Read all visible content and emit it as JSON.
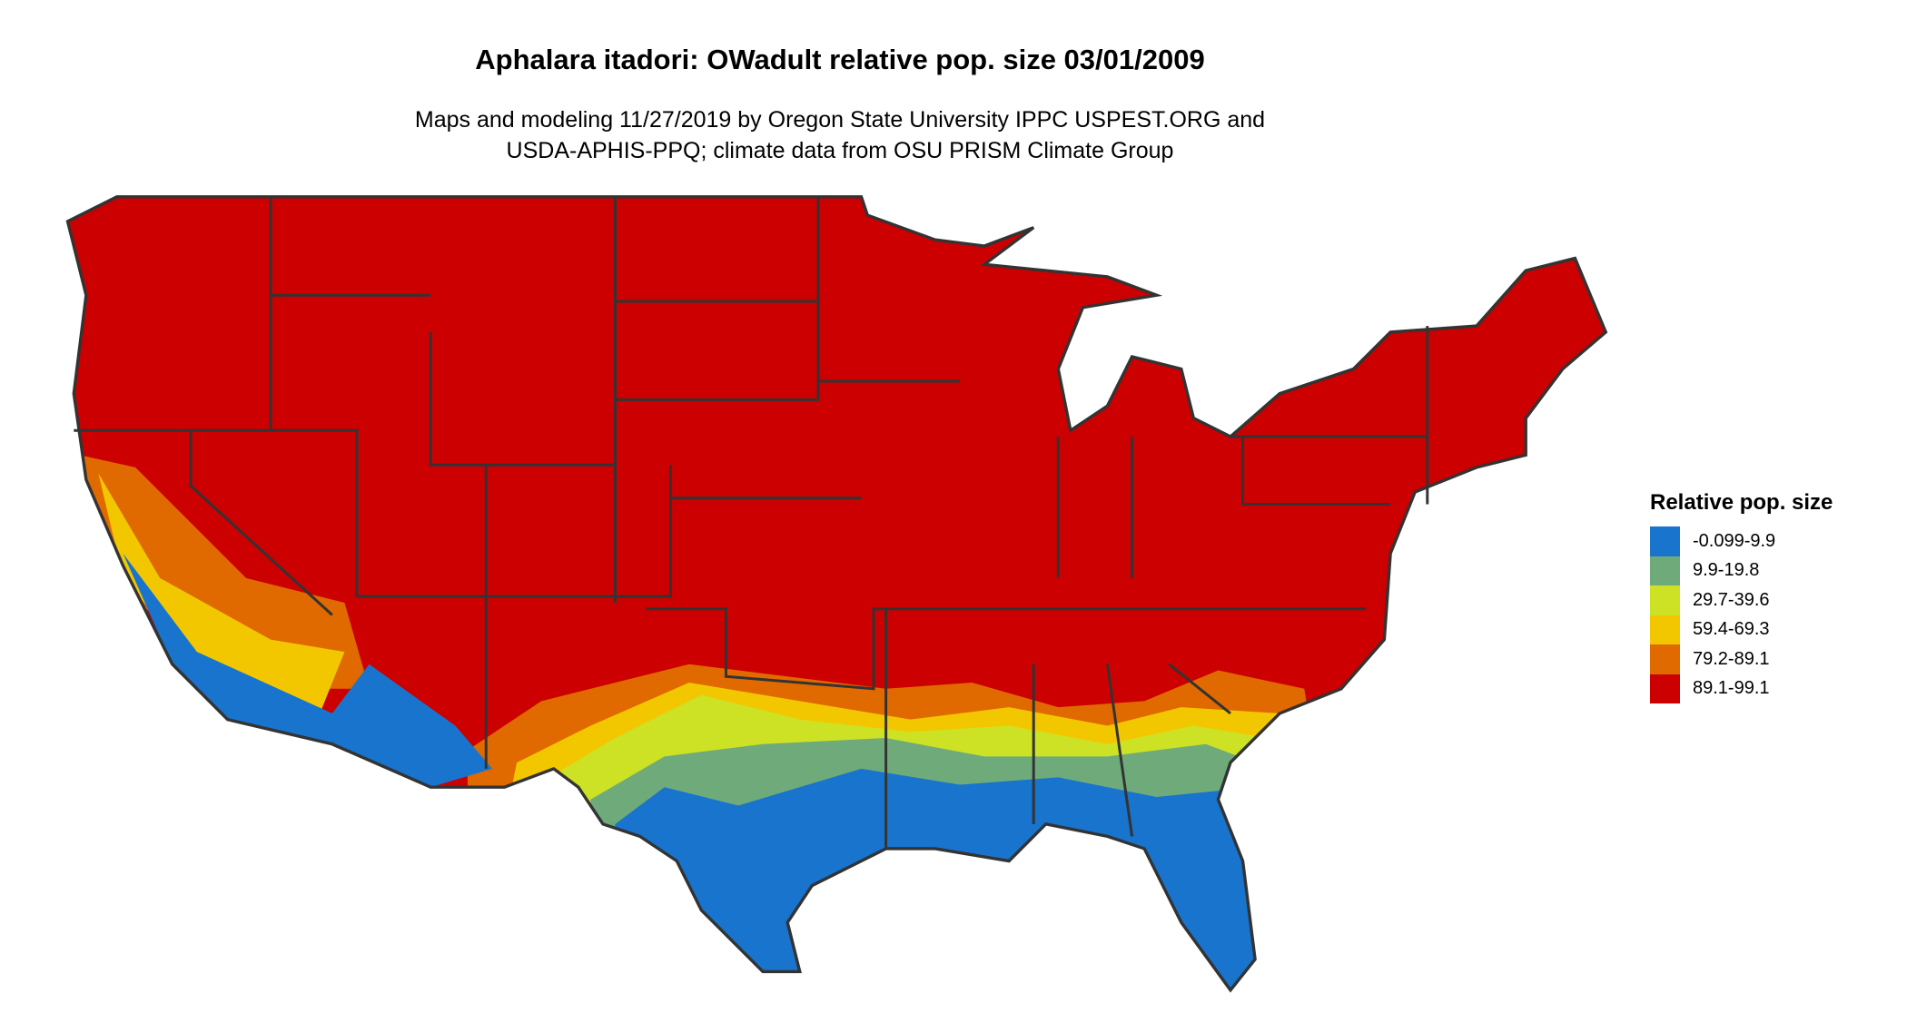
{
  "title": "Aphalara itadori: OWadult relative pop. size 03/01/2009",
  "subtitle_lines": [
    "Maps and modeling 11/27/2019 by Oregon State University IPPC USPEST.ORG and",
    "USDA-APHIS-PPQ; climate data from OSU PRISM Climate Group"
  ],
  "legend": {
    "title": "Relative pop. size",
    "items": [
      {
        "label": "-0.099-9.9",
        "color": "#1874CD"
      },
      {
        "label": "9.9-19.8",
        "color": "#6FAB7A"
      },
      {
        "label": "29.7-39.6",
        "color": "#CDE225"
      },
      {
        "label": "59.4-69.3",
        "color": "#F2C700"
      },
      {
        "label": "79.2-89.1",
        "color": "#E06A00"
      },
      {
        "label": "89.1-99.1",
        "color": "#CC0000"
      }
    ]
  },
  "map": {
    "region": "Contiguous United States",
    "border_color": "#333333",
    "dominant_class": "89.1-99.1"
  }
}
